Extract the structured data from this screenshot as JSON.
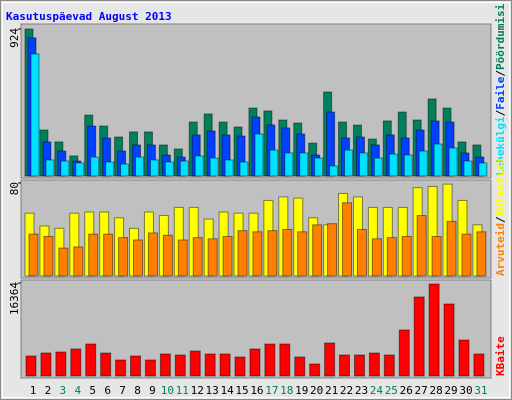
{
  "title": "Kasutuspäevad August 2013",
  "chart_data": [
    {
      "type": "bar",
      "ylim": [
        0,
        924
      ],
      "yticks": [
        924
      ],
      "legend_separator": "/",
      "series": [
        {
          "name": "Pöördumisi",
          "color": "#00805c",
          "values": [
            924,
            289,
            214,
            126,
            383,
            314,
            245,
            277,
            277,
            195,
            170,
            339,
            390,
            339,
            308,
            427,
            409,
            352,
            333,
            207,
            528,
            339,
            320,
            232,
            346,
            402,
            352,
            484,
            427,
            214,
            195
          ]
        },
        {
          "name": "Faile",
          "color": "#0040ff",
          "values": [
            868,
            214,
            157,
            94,
            314,
            239,
            157,
            195,
            195,
            132,
            119,
            258,
            283,
            258,
            251,
            371,
            321,
            302,
            264,
            132,
            402,
            239,
            245,
            195,
            258,
            239,
            289,
            346,
            339,
            145,
            119
          ]
        },
        {
          "name": "Lehekülgi",
          "color": "#00e0ff",
          "values": [
            767,
            101,
            94,
            82,
            119,
            88,
            75,
            119,
            101,
            88,
            94,
            126,
            113,
            101,
            88,
            264,
            163,
            145,
            145,
            113,
            63,
            163,
            145,
            113,
            138,
            132,
            157,
            201,
            176,
            94,
            82
          ]
        }
      ]
    },
    {
      "type": "bar",
      "ylim": [
        0,
        80
      ],
      "yticks": [
        80
      ],
      "legend_separator": "/",
      "series": [
        {
          "name": "Külastusi",
          "color": "#ffff00",
          "values": [
            54,
            43,
            41,
            54,
            55,
            55,
            50,
            41,
            55,
            52,
            59,
            59,
            49,
            55,
            54,
            54,
            65,
            68,
            67,
            50,
            44,
            71,
            68,
            59,
            59,
            59,
            76,
            77,
            79,
            65,
            44
          ]
        },
        {
          "name": "Arvuteid",
          "color": "#ff8000",
          "values": [
            36,
            34,
            24,
            25,
            36,
            36,
            33,
            31,
            37,
            35,
            31,
            33,
            32,
            34,
            39,
            38,
            39,
            40,
            38,
            44,
            45,
            63,
            40,
            32,
            33,
            34,
            52,
            34,
            47,
            36,
            38
          ]
        }
      ]
    },
    {
      "type": "bar",
      "ylim": [
        0,
        16364
      ],
      "yticks": [
        16364
      ],
      "categories": [
        "1",
        "2",
        "3",
        "4",
        "5",
        "6",
        "7",
        "8",
        "9",
        "10",
        "11",
        "12",
        "13",
        "14",
        "15",
        "16",
        "17",
        "18",
        "19",
        "20",
        "21",
        "22",
        "23",
        "24",
        "25",
        "26",
        "27",
        "28",
        "29",
        "30",
        "31"
      ],
      "label_colors": [
        "#000000",
        "#000000",
        "#00805c",
        "#00805c",
        "#000000",
        "#000000",
        "#000000",
        "#000000",
        "#000000",
        "#00805c",
        "#00805c",
        "#000000",
        "#000000",
        "#000000",
        "#000000",
        "#000000",
        "#00805c",
        "#00805c",
        "#000000",
        "#000000",
        "#000000",
        "#000000",
        "#000000",
        "#00805c",
        "#00805c",
        "#000000",
        "#000000",
        "#000000",
        "#000000",
        "#000000",
        "#00805c"
      ],
      "series": [
        {
          "name": "KBaite",
          "color": "#ff0000",
          "values": [
            3520,
            4047,
            4223,
            4751,
            5631,
            4047,
            2815,
            3520,
            2815,
            3871,
            3695,
            4399,
            3871,
            3871,
            3343,
            4751,
            5631,
            5631,
            3343,
            2111,
            5807,
            3695,
            3695,
            4047,
            3695,
            8094,
            13900,
            16188,
            12669,
            6334,
            3871
          ]
        }
      ]
    }
  ]
}
